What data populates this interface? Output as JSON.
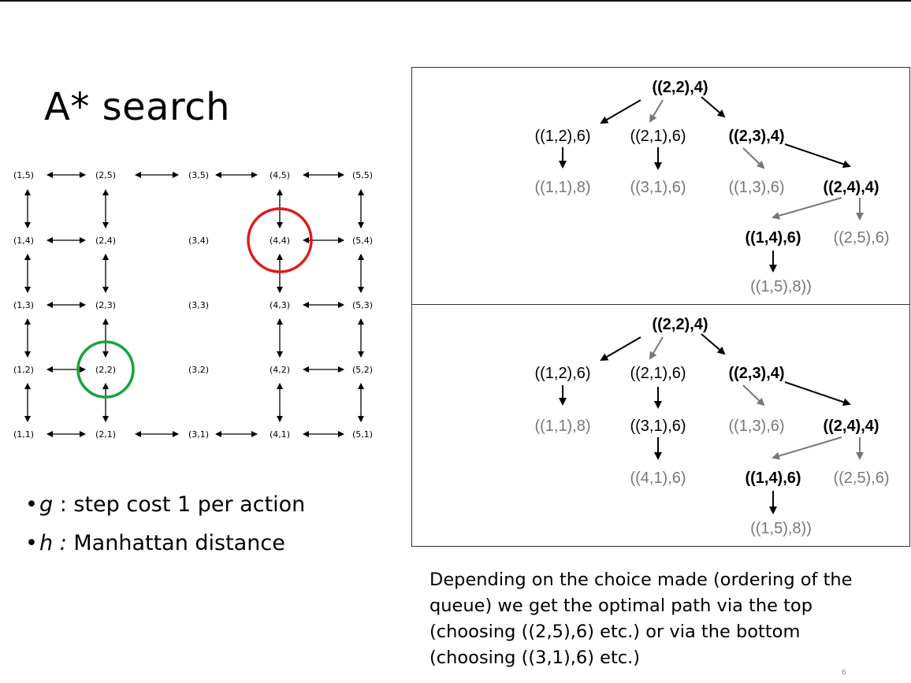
{
  "title": "A* search",
  "grid": {
    "labels": {
      "r5": [
        "(1,5)",
        "(2,5)",
        "(3,5)",
        "(4,5)",
        "(5,5)"
      ],
      "r4": [
        "(1,4)",
        "(2,4)",
        "(3,4)",
        "(4,4)",
        "(5,4)"
      ],
      "r3": [
        "(1,3)",
        "(2,3)",
        "(3,3)",
        "(4,3)",
        "(5,3)"
      ],
      "r2": [
        "(1,2)",
        "(2,2)",
        "(3,2)",
        "(4,2)",
        "(5,2)"
      ],
      "r1": [
        "(1,1)",
        "(2,1)",
        "(3,1)",
        "(4,1)",
        "(5,1)"
      ]
    },
    "start": "(2,2)",
    "goal": "(4,4)",
    "start_color": "#1aa33a",
    "goal_color": "#e01b1b"
  },
  "bullets": {
    "g_symbol": "g",
    "g_text": " : step cost 1 per action",
    "h_symbol": "h :",
    "h_text": " Manhattan distance"
  },
  "tree_top": {
    "root": "((2,2),4)",
    "n12": "((1,2),6)",
    "n21": "((2,1),6)",
    "n23": "((2,3),4)",
    "n11": "((1,1),8)",
    "n31": "((3,1),6)",
    "n13": "((1,3),6)",
    "n24": "((2,4),4)",
    "n14": "((1,4),6)",
    "n25": "((2,5),6)",
    "n15": "((1,5),8))"
  },
  "tree_bottom": {
    "root": "((2,2),4)",
    "n12": "((1,2),6)",
    "n21": "((2,1),6)",
    "n23": "((2,3),4)",
    "n11": "((1,1),8)",
    "n31": "((3,1),6)",
    "n13": "((1,3),6)",
    "n24": "((2,4),4)",
    "n41": "((4,1),6)",
    "n14": "((1,4),6)",
    "n25": "((2,5),6)",
    "n15": "((1,5),8))"
  },
  "caption": "Depending on the choice made (ordering of the queue) we get the optimal path via the top (choosing ((2,5),6) etc.) or via the bottom (choosing ((3,1),6) etc.)",
  "page_number": "6",
  "colors": {
    "expanded": "#000000",
    "frontier": "#777777"
  }
}
